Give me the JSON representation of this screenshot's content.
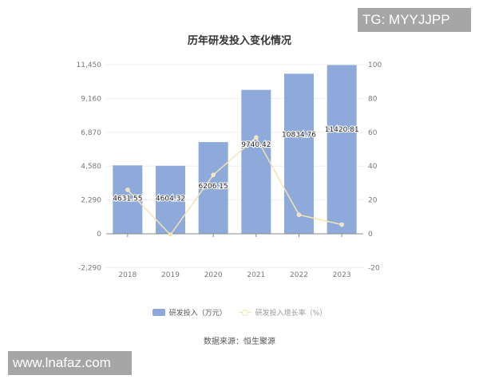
{
  "title": "历年研发投入变化情况",
  "watermarks": {
    "top_right": "TG: MYYJJPP",
    "bottom_left": "www.lnafaz.com"
  },
  "source": "数据来源：恒生聚源",
  "legend": {
    "bar_label": "研发投入（万元）",
    "line_label": "研发投入增长率（%）"
  },
  "colors": {
    "bar": "#8eaadb",
    "line": "#f5e4b0",
    "grid": "#eeeeee",
    "axis": "#888888"
  },
  "chart_data": {
    "type": "bar",
    "title": "历年研发投入变化情况",
    "categories": [
      "2018",
      "2019",
      "2020",
      "2021",
      "2022",
      "2023"
    ],
    "series": [
      {
        "name": "研发投入（万元）",
        "type": "bar",
        "axis": "left",
        "values": [
          4631.55,
          4604.32,
          6206.15,
          9740.42,
          10834.76,
          11420.81
        ],
        "labels": [
          "4631.55",
          "4604.32",
          "6206.15",
          "9740.42",
          "10834.76",
          "11420.81"
        ]
      },
      {
        "name": "研发投入增长率（%）",
        "type": "line",
        "axis": "right",
        "values": [
          26,
          -0.59,
          34.79,
          56.95,
          11.24,
          5.41
        ]
      }
    ],
    "left_axis": {
      "ticks": [
        "11,450",
        "9,160",
        "6,870",
        "4,580",
        "2,290",
        "0",
        "-2,290"
      ],
      "tick_values": [
        11450,
        9160,
        6870,
        4580,
        2290,
        0,
        -2290
      ],
      "ylim": [
        -2290,
        11450
      ]
    },
    "right_axis": {
      "ticks": [
        "100",
        "80",
        "60",
        "40",
        "20",
        "0",
        "-20"
      ],
      "tick_values": [
        100,
        80,
        60,
        40,
        20,
        0,
        -20
      ],
      "ylim": [
        -20,
        100
      ]
    },
    "xlabel": "",
    "ylabel": "",
    "grid": true,
    "legend_position": "bottom"
  }
}
